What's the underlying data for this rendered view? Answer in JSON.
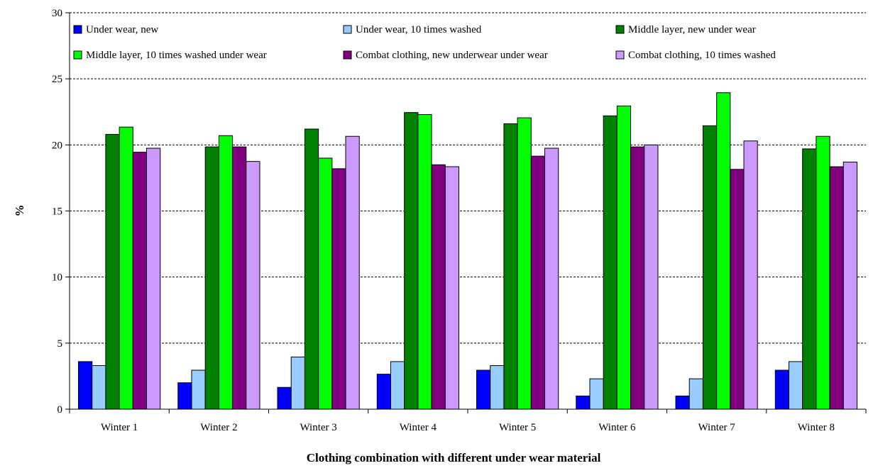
{
  "chart_data": {
    "type": "bar",
    "title": "",
    "xlabel": "Clothing combination with different under wear material",
    "ylabel": "%",
    "ylim": [
      0,
      30
    ],
    "yticks": [
      "0",
      "5",
      "10",
      "15",
      "20",
      "25",
      "30"
    ],
    "grid": "horizontal dashed",
    "legend_position": "top, inside plot area",
    "categories": [
      "Winter 1",
      "Winter 2",
      "Winter 3",
      "Winter 4",
      "Winter 5",
      "Winter 6",
      "Winter 7",
      "Winter 8"
    ],
    "series": [
      {
        "name": "Under wear, new",
        "color": "#0000ff",
        "values": [
          3.6,
          2.0,
          1.65,
          2.65,
          2.95,
          1.0,
          1.0,
          2.95
        ]
      },
      {
        "name": "Under wear, 10 times washed",
        "color": "#99ccff",
        "values": [
          3.3,
          2.95,
          3.95,
          3.6,
          3.3,
          2.3,
          2.3,
          3.6
        ]
      },
      {
        "name": "Middle layer, new under wear",
        "color": "#008000",
        "values": [
          20.8,
          19.85,
          21.2,
          22.45,
          21.6,
          22.2,
          21.45,
          19.7
        ]
      },
      {
        "name": "Middle layer, 10 times washed under wear",
        "color": "#00ff00",
        "values": [
          21.35,
          20.7,
          19.0,
          22.3,
          22.05,
          22.95,
          23.95,
          20.65
        ]
      },
      {
        "name": "Combat clothing, new underwear under wear",
        "color": "#800080",
        "values": [
          19.45,
          19.85,
          18.2,
          18.5,
          19.15,
          19.85,
          18.15,
          18.35
        ]
      },
      {
        "name": "Combat clothing, 10 times washed",
        "color": "#cc99ff",
        "values": [
          19.75,
          18.75,
          20.65,
          18.35,
          19.75,
          20.0,
          20.3,
          18.7
        ]
      }
    ]
  }
}
